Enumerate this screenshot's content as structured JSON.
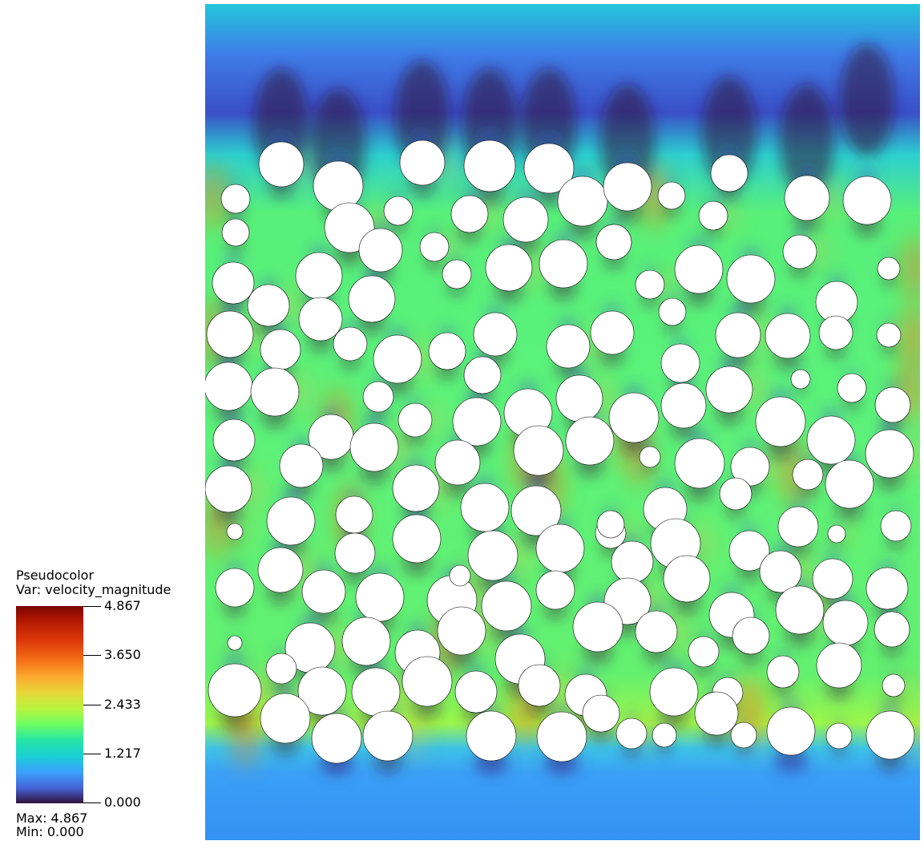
{
  "legend": {
    "title": "Pseudocolor",
    "variable": "Var: velocity_magnitude",
    "ticks": [
      "4.867",
      "3.650",
      "2.433",
      "1.217",
      "0.000"
    ],
    "max_text": "Max:  4.867",
    "min_text": "Min:  0.000"
  },
  "colors": {
    "background_flow": "#2f8ff2",
    "low_velocity": "#30123b",
    "high_velocity": "#7a0403",
    "obstacle": "#ffffff"
  }
}
